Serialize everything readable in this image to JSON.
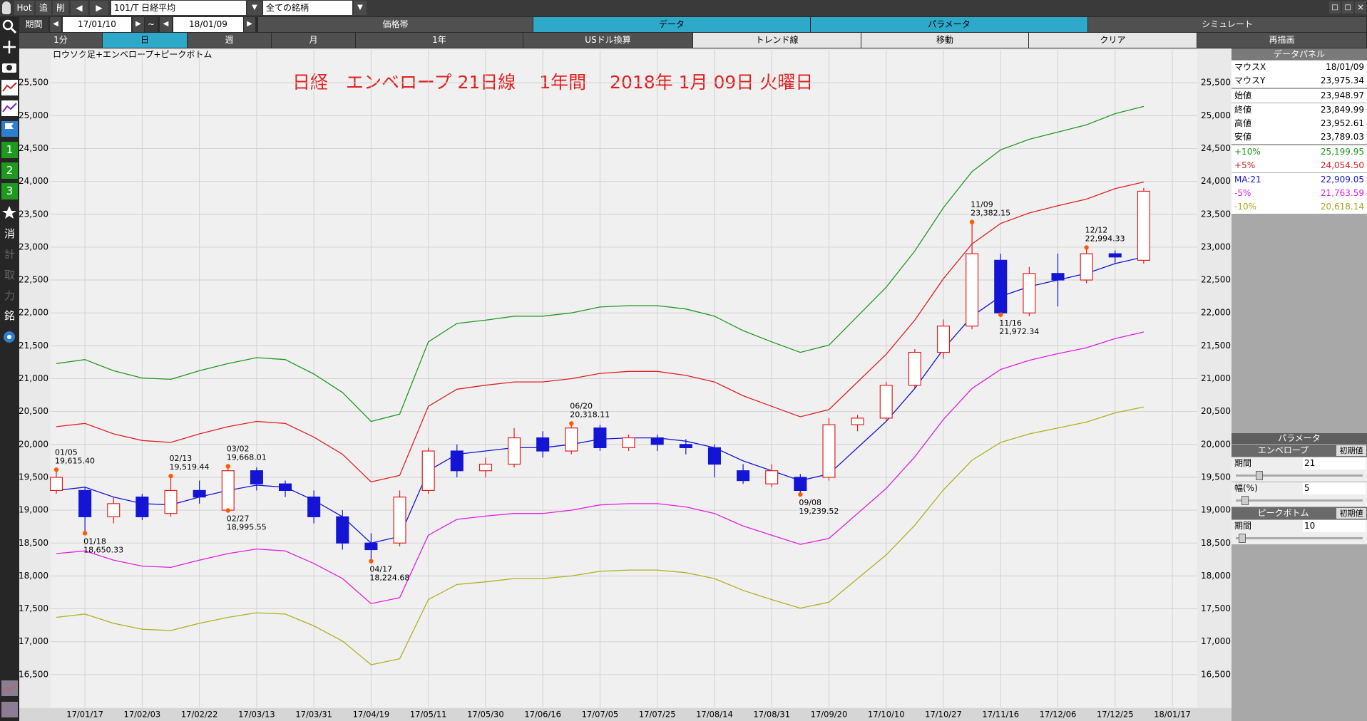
{
  "toolbar": {
    "items": [
      "Hot",
      "追",
      "削"
    ],
    "code": "101/T 日経平均",
    "filter": "全ての銘柄",
    "period_label": "期間",
    "from": "17/01/10",
    "sep": "~",
    "to": "18/01/09"
  },
  "tabs_top": {
    "items": [
      "価格帯",
      "データ",
      "パラメータ",
      "シミュレート"
    ],
    "active": [
      1,
      2
    ]
  },
  "tabs_mode": {
    "items": [
      "1分",
      "日",
      "週",
      "月",
      "1年",
      "USドル換算",
      "トレンド線",
      "移動",
      "クリア",
      "再描画"
    ],
    "active": [
      1
    ],
    "light": [
      6,
      7,
      8
    ]
  },
  "side_icons": [
    "1",
    "2",
    "3",
    "消",
    "計",
    "取",
    "力",
    "銘"
  ],
  "chart_data": {
    "type": "candlestick",
    "subtitle": "ロウソク足+エンベロープ+ピークボトム",
    "title": "日経　エンベロープ 21日線　 1年間　 2018年 1月 09日 火曜日",
    "categories": [
      null,
      "17/01/17",
      null,
      "17/02/03",
      null,
      "17/02/22",
      null,
      "17/03/13",
      null,
      "17/03/31",
      null,
      "17/04/19",
      null,
      "17/05/11",
      null,
      "17/05/30",
      null,
      "17/06/16",
      null,
      "17/07/05",
      null,
      "17/07/25",
      null,
      "17/08/14",
      null,
      "17/08/31",
      null,
      "17/09/20",
      null,
      "17/10/10",
      null,
      "17/10/27",
      null,
      "17/11/16",
      null,
      "17/12/06",
      null,
      "17/12/25",
      null,
      "18/01/17"
    ],
    "ohlc": {
      "open": [
        19300,
        19300,
        18900,
        19200,
        18950,
        19300,
        19000,
        19600,
        19400,
        19200,
        18900,
        18500,
        18500,
        19300,
        19900,
        19600,
        19700,
        20100,
        19900,
        20250,
        19950,
        20100,
        20000,
        19950,
        19600,
        19400,
        19500,
        19500,
        20300,
        20400,
        20900,
        21400,
        21800,
        22800,
        22000,
        22600,
        22500,
        22900,
        22800,
        null
      ],
      "high": [
        19615.4,
        19350,
        19200,
        19250,
        19519.44,
        19450,
        19668.01,
        19650,
        19450,
        19300,
        19000,
        18650,
        19300,
        19950,
        20000,
        19800,
        20250,
        20200,
        20318.11,
        20300,
        20150,
        20150,
        20080,
        20000,
        19700,
        19700,
        19550,
        20400,
        20450,
        20950,
        21450,
        21900,
        23382.15,
        22900,
        22700,
        22900,
        22994.33,
        22950,
        23900,
        null
      ],
      "low": [
        19250,
        18650.33,
        18800,
        18850,
        18900,
        19100,
        18995.55,
        19300,
        19200,
        18800,
        18400,
        18224.68,
        18450,
        19250,
        19500,
        19500,
        19650,
        19800,
        19850,
        19900,
        19900,
        19900,
        19850,
        19500,
        19400,
        19350,
        19239.52,
        19450,
        20200,
        20350,
        20850,
        21300,
        21750,
        21972.34,
        21950,
        22100,
        22450,
        22750,
        22750,
        null
      ],
      "close": [
        19500,
        18900,
        19100,
        18900,
        19300,
        19200,
        19600,
        19400,
        19300,
        18900,
        18500,
        18400,
        19200,
        19900,
        19600,
        19700,
        20100,
        19900,
        20250,
        19950,
        20100,
        20000,
        19950,
        19700,
        19450,
        19600,
        19300,
        20300,
        20400,
        20900,
        21400,
        21800,
        22900,
        22000,
        22600,
        22500,
        22900,
        22850,
        23850,
        null
      ]
    },
    "up_color": "#e02020",
    "down_color": "#1414d4",
    "series": [
      {
        "color": "#1f9a1f",
        "values": [
          21230,
          21290,
          21120,
          21010,
          20990,
          21120,
          21230,
          21320,
          21290,
          21070,
          20790,
          20350,
          20460,
          21560,
          21840,
          21890,
          21950,
          21950,
          22000,
          22090,
          22110,
          22110,
          22060,
          21950,
          21730,
          21560,
          21400,
          21510,
          21950,
          22390,
          22940,
          23600,
          24150,
          24480,
          24640,
          24750,
          24860,
          25030,
          25140,
          null
        ]
      },
      {
        "color": "#e02020",
        "values": [
          20270,
          20320,
          20160,
          20060,
          20030,
          20160,
          20270,
          20350,
          20320,
          20110,
          19850,
          19430,
          19530,
          20580,
          20840,
          20900,
          20950,
          20950,
          21000,
          21080,
          21110,
          21110,
          21050,
          20950,
          20740,
          20580,
          20420,
          20530,
          20950,
          21370,
          21890,
          22520,
          23050,
          23360,
          23520,
          23630,
          23730,
          23890,
          23990,
          null
        ]
      },
      {
        "color": "#1414d4",
        "values": [
          19300,
          19350,
          19200,
          19100,
          19080,
          19200,
          19300,
          19380,
          19350,
          19150,
          18900,
          18500,
          18600,
          19600,
          19850,
          19900,
          19950,
          19950,
          20000,
          20080,
          20100,
          20100,
          20050,
          19950,
          19750,
          19600,
          19450,
          19550,
          19950,
          20350,
          20850,
          21450,
          21950,
          22250,
          22400,
          22500,
          22600,
          22750,
          22850,
          null
        ]
      },
      {
        "color": "#e020e0",
        "values": [
          18340,
          18380,
          18240,
          18150,
          18130,
          18240,
          18340,
          18410,
          18380,
          18190,
          17960,
          17580,
          17670,
          18620,
          18860,
          18910,
          18950,
          18950,
          19000,
          19080,
          19100,
          19100,
          19050,
          18950,
          18760,
          18620,
          18480,
          18570,
          18950,
          19330,
          19810,
          20380,
          20850,
          21140,
          21280,
          21380,
          21470,
          21610,
          21710,
          null
        ]
      },
      {
        "color": "#b0b020",
        "values": [
          17370,
          17420,
          17280,
          17190,
          17170,
          17280,
          17370,
          17440,
          17420,
          17240,
          17010,
          16650,
          16740,
          17640,
          17870,
          17910,
          17960,
          17960,
          18000,
          18070,
          18090,
          18090,
          18050,
          17960,
          17780,
          17640,
          17510,
          17600,
          17960,
          18320,
          18770,
          19310,
          19760,
          20030,
          20160,
          20250,
          20340,
          20480,
          20570,
          null
        ]
      }
    ],
    "peaks": [
      {
        "date": "01/05",
        "value": 19615.4,
        "label": "19,615.40"
      },
      {
        "date": "01/18",
        "value": 18650.33,
        "label": "18,650.33"
      },
      {
        "date": "02/13",
        "value": 19519.44,
        "label": "19,519.44"
      },
      {
        "date": "02/27",
        "value": 18995.55,
        "label": "18,995.55"
      },
      {
        "date": "03/02",
        "value": 19668.01,
        "label": "19,668.01"
      },
      {
        "date": "04/17",
        "value": 18224.68,
        "label": "18,224.68"
      },
      {
        "date": "06/20",
        "value": 20318.11,
        "label": "20,318.11"
      },
      {
        "date": "09/08",
        "value": 19239.52,
        "label": "19,239.52"
      },
      {
        "date": "11/09",
        "value": 23382.15,
        "label": "23,382.15"
      },
      {
        "date": "11/16",
        "value": 21972.34,
        "label": "21,972.34"
      },
      {
        "date": "12/12",
        "value": 22994.33,
        "label": "22,994.33"
      }
    ],
    "peak_color": "#ff5a00",
    "ylim": [
      16000,
      26000
    ],
    "yticks": [
      {
        "value": 16500,
        "label": "16,500"
      },
      {
        "value": 17000,
        "label": "17,000"
      },
      {
        "value": 17500,
        "label": "17,500"
      },
      {
        "value": 18000,
        "label": "18,000"
      },
      {
        "value": 18500,
        "label": "18,500"
      },
      {
        "value": 19000,
        "label": "19,000"
      },
      {
        "value": 19500,
        "label": "19,500"
      },
      {
        "value": 20000,
        "label": "20,000"
      },
      {
        "value": 20500,
        "label": "20,500"
      },
      {
        "value": 21000,
        "label": "21,000"
      },
      {
        "value": 21500,
        "label": "21,500"
      },
      {
        "value": 22000,
        "label": "22,000"
      },
      {
        "value": 22500,
        "label": "22,500"
      },
      {
        "value": 23000,
        "label": "23,000"
      },
      {
        "value": 23500,
        "label": "23,500"
      },
      {
        "value": 24000,
        "label": "24,000"
      },
      {
        "value": 24500,
        "label": "24,500"
      },
      {
        "value": 25000,
        "label": "25,000"
      },
      {
        "value": 25500,
        "label": "25,500"
      }
    ],
    "grid": true
  },
  "data_panel": {
    "title": "データパネル",
    "rows": [
      {
        "label": "マウスX",
        "value": "18/01/09",
        "color": "#000000"
      },
      {
        "label": "マウスY",
        "value": "23,975.34",
        "color": "#000000"
      },
      {
        "label": "始値",
        "value": "23,948.97",
        "color": "#000000"
      },
      {
        "label": "終値",
        "value": "23,849.99",
        "color": "#000000"
      },
      {
        "label": "高値",
        "value": "23,952.61",
        "color": "#000000"
      },
      {
        "label": "安値",
        "value": "23,789.03",
        "color": "#000000"
      },
      {
        "label": "+10%",
        "value": "25,199.95",
        "color": "#1f9a1f"
      },
      {
        "label": "+5%",
        "value": "24,054.50",
        "color": "#e02020"
      },
      {
        "label": "MA:21",
        "value": "22,909.05",
        "color": "#1414d4"
      },
      {
        "label": "-5%",
        "value": "21,763.59",
        "color": "#e020e0"
      },
      {
        "label": "-10%",
        "value": "20,618.14",
        "color": "#a8a820"
      }
    ]
  },
  "parameters": {
    "title": "パラメータ",
    "sections": [
      {
        "name": "エンベロープ",
        "reset": "初期値",
        "fields": [
          {
            "label": "期間",
            "value": 21
          },
          {
            "label": "幅(%)",
            "value": 5
          }
        ]
      },
      {
        "name": "ピークボトム",
        "reset": "初期値",
        "fields": [
          {
            "label": "期間",
            "value": 10
          }
        ]
      }
    ]
  }
}
